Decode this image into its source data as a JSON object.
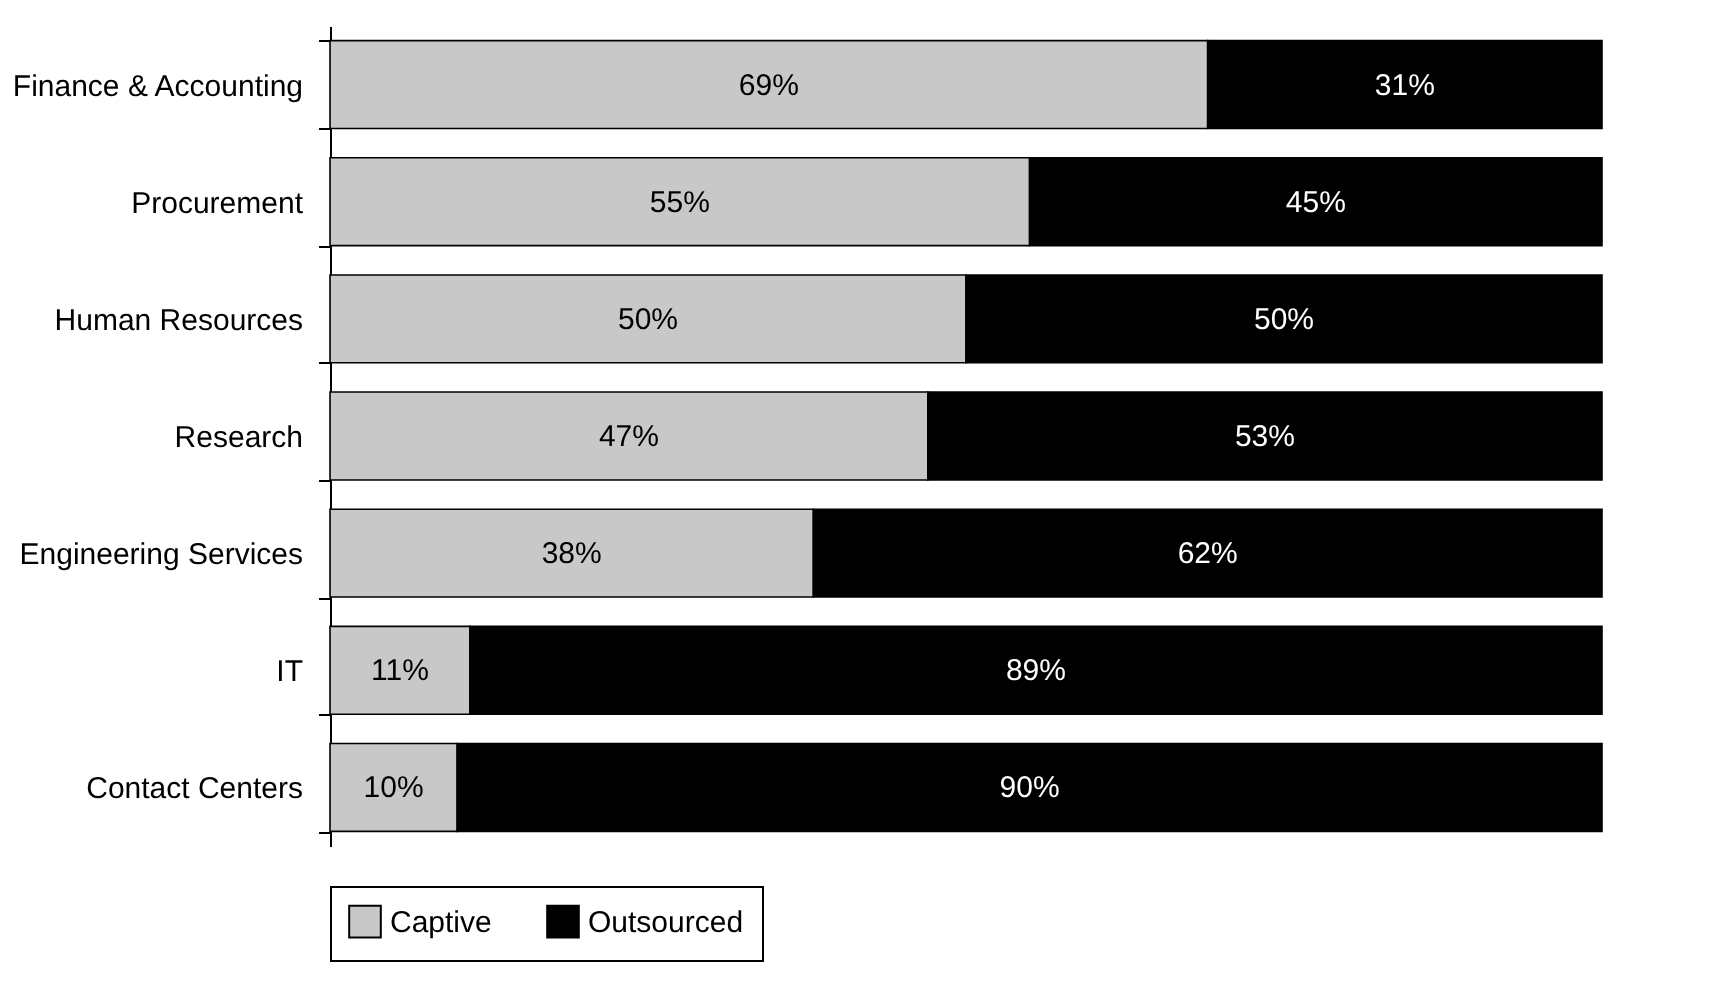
{
  "chart_data": {
    "type": "bar",
    "orientation": "horizontal",
    "stacked": true,
    "tick_labels": "y",
    "categories": [
      "Finance & Accounting",
      "Procurement",
      "Human Resources",
      "Research",
      "Engineering Services",
      "IT",
      "Contact Centers"
    ],
    "series": [
      {
        "name": "Captive",
        "color": "#c8c8c8",
        "values": [
          69,
          55,
          50,
          47,
          38,
          11,
          10
        ],
        "value_labels": [
          "69%",
          "55%",
          "50%",
          "47%",
          "38%",
          "11%",
          "10%"
        ]
      },
      {
        "name": "Outsourced",
        "color": "#000000",
        "values": [
          31,
          45,
          50,
          53,
          62,
          89,
          90
        ],
        "value_labels": [
          "31%",
          "45%",
          "50%",
          "53%",
          "62%",
          "89%",
          "90%"
        ]
      }
    ],
    "legend": "bottom"
  }
}
